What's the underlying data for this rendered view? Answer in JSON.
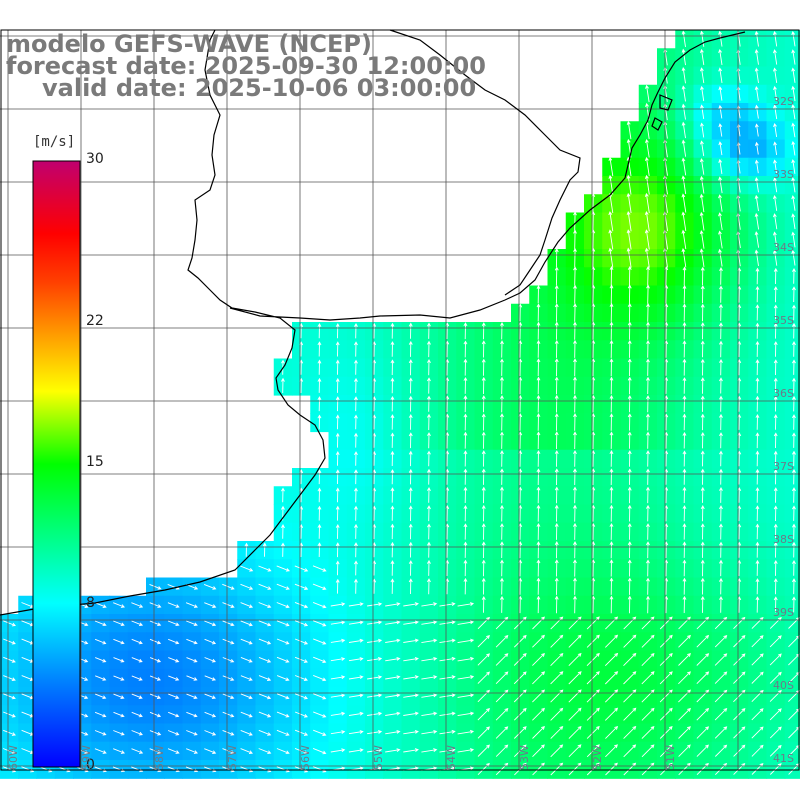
{
  "title": {
    "line1": "modelo GEFS-WAVE (NCEP)",
    "line2": "forecast date: 2025-09-30 12:00:00",
    "line3": "valid date: 2025-10-06 03:00:00"
  },
  "colorbar": {
    "unit": "[m/s]",
    "min": 0,
    "max": 30,
    "ticks": [
      "30",
      "22",
      "15",
      "8",
      "0"
    ],
    "tick_values": [
      30,
      22,
      15,
      8,
      0
    ]
  },
  "lat_labels": [
    "32S",
    "33S",
    "34S",
    "35S",
    "36S",
    "37S",
    "38S",
    "39S",
    "40S",
    "41S"
  ],
  "lon_labels": [
    "60W",
    "59W",
    "58W",
    "57W",
    "56W",
    "55W",
    "54W",
    "53W",
    "52W",
    "51W"
  ],
  "colors": {
    "land": "#ffffff",
    "grid": "#555555",
    "coast": "#000000",
    "arrow": "#ffffff",
    "title": "#7a7a7a"
  }
}
